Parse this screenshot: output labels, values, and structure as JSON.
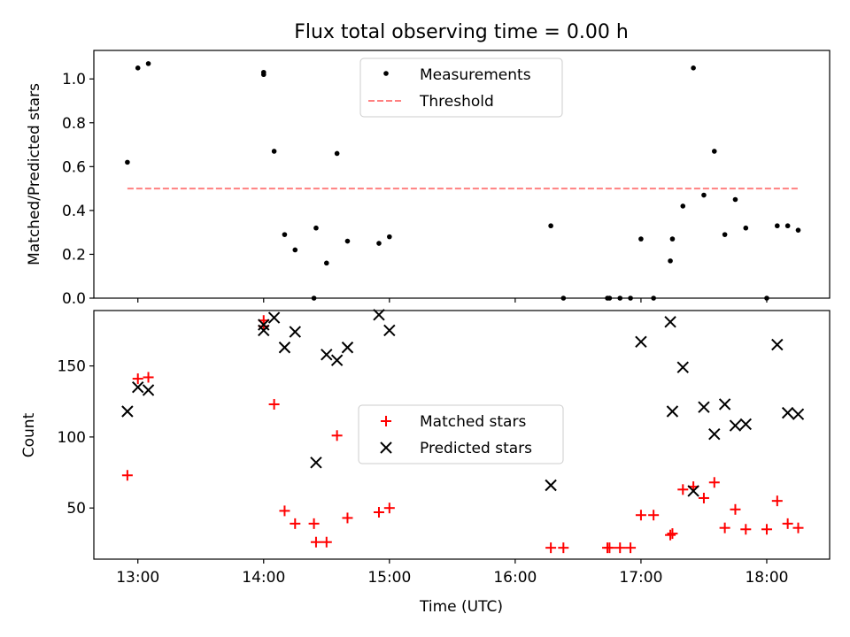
{
  "chart_data": [
    {
      "type": "scatter",
      "title": "Flux total observing time = 0.00 h",
      "ylabel": "Matched/Predicted stars",
      "xlabel": "",
      "ylim": [
        0,
        1.13
      ],
      "x_axis_hours": [
        12.65,
        18.5
      ],
      "yticks": [
        0.0,
        0.2,
        0.4,
        0.6,
        0.8,
        1.0
      ],
      "ytick_labels": [
        "0.0",
        "0.2",
        "0.4",
        "0.6",
        "0.8",
        "1.0"
      ],
      "xtick_hours": [
        13,
        14,
        15,
        16,
        17,
        18
      ],
      "grid": false,
      "legend": {
        "placement": "top-center",
        "entries": [
          {
            "label": "Measurements",
            "marker": "dot",
            "color": "#000000"
          },
          {
            "label": "Threshold",
            "marker": "dashed-line",
            "color": "#ff8080"
          }
        ]
      },
      "threshold": {
        "value": 0.5,
        "x_range": [
          "12:55",
          "18:15"
        ],
        "color": "#ff8080"
      },
      "series": [
        {
          "name": "Measurements",
          "color": "#000000",
          "points": [
            {
              "x": "12:55",
              "y": 0.62
            },
            {
              "x": "13:00",
              "y": 1.05
            },
            {
              "x": "13:05",
              "y": 1.07
            },
            {
              "x": "14:00",
              "y": 1.03
            },
            {
              "x": "14:00",
              "y": 1.02
            },
            {
              "x": "14:05",
              "y": 0.67
            },
            {
              "x": "14:10",
              "y": 0.29
            },
            {
              "x": "14:15",
              "y": 0.22
            },
            {
              "x": "14:24",
              "y": 0.0
            },
            {
              "x": "14:25",
              "y": 0.32
            },
            {
              "x": "14:30",
              "y": 0.16
            },
            {
              "x": "14:35",
              "y": 0.66
            },
            {
              "x": "14:40",
              "y": 0.26
            },
            {
              "x": "14:55",
              "y": 0.25
            },
            {
              "x": "15:00",
              "y": 0.28
            },
            {
              "x": "16:17",
              "y": 0.33
            },
            {
              "x": "16:23",
              "y": 0.0
            },
            {
              "x": "16:44",
              "y": 0.0
            },
            {
              "x": "16:45",
              "y": 0.0
            },
            {
              "x": "16:50",
              "y": 0.0
            },
            {
              "x": "16:55",
              "y": 0.0
            },
            {
              "x": "17:00",
              "y": 0.27
            },
            {
              "x": "17:06",
              "y": 0.0
            },
            {
              "x": "17:14",
              "y": 0.17
            },
            {
              "x": "17:15",
              "y": 0.27
            },
            {
              "x": "17:20",
              "y": 0.42
            },
            {
              "x": "17:25",
              "y": 1.05
            },
            {
              "x": "17:30",
              "y": 0.47
            },
            {
              "x": "17:35",
              "y": 0.67
            },
            {
              "x": "17:40",
              "y": 0.29
            },
            {
              "x": "17:45",
              "y": 0.45
            },
            {
              "x": "17:50",
              "y": 0.32
            },
            {
              "x": "18:00",
              "y": 0.0
            },
            {
              "x": "18:05",
              "y": 0.33
            },
            {
              "x": "18:10",
              "y": 0.33
            },
            {
              "x": "18:15",
              "y": 0.31
            }
          ]
        }
      ]
    },
    {
      "type": "scatter",
      "title": "",
      "ylabel": "Count",
      "xlabel": "Time (UTC)",
      "ylim": [
        14,
        189
      ],
      "x_axis_hours": [
        12.65,
        18.5
      ],
      "yticks": [
        50,
        100,
        150
      ],
      "ytick_labels": [
        "50",
        "100",
        "150"
      ],
      "xtick_hours": [
        13,
        14,
        15,
        16,
        17,
        18
      ],
      "xtick_labels": [
        "13:00",
        "14:00",
        "15:00",
        "16:00",
        "17:00",
        "18:00"
      ],
      "grid": false,
      "legend": {
        "placement": "center",
        "entries": [
          {
            "label": "Matched stars",
            "marker": "plus",
            "color": "#ff0000"
          },
          {
            "label": "Predicted stars",
            "marker": "x",
            "color": "#000000"
          }
        ]
      },
      "series": [
        {
          "name": "Matched stars",
          "marker": "plus",
          "color": "#ff0000",
          "points": [
            {
              "x": "12:55",
              "y": 73
            },
            {
              "x": "13:00",
              "y": 141
            },
            {
              "x": "13:05",
              "y": 142
            },
            {
              "x": "14:00",
              "y": 182
            },
            {
              "x": "14:00",
              "y": 178
            },
            {
              "x": "14:05",
              "y": 123
            },
            {
              "x": "14:10",
              "y": 48
            },
            {
              "x": "14:15",
              "y": 39
            },
            {
              "x": "14:24",
              "y": 39
            },
            {
              "x": "14:25",
              "y": 26
            },
            {
              "x": "14:30",
              "y": 26
            },
            {
              "x": "14:35",
              "y": 101
            },
            {
              "x": "14:40",
              "y": 43
            },
            {
              "x": "14:55",
              "y": 47
            },
            {
              "x": "15:00",
              "y": 50
            },
            {
              "x": "16:17",
              "y": 22
            },
            {
              "x": "16:23",
              "y": 22
            },
            {
              "x": "16:44",
              "y": 22
            },
            {
              "x": "16:45",
              "y": 22
            },
            {
              "x": "16:50",
              "y": 22
            },
            {
              "x": "16:55",
              "y": 22
            },
            {
              "x": "17:00",
              "y": 45
            },
            {
              "x": "17:06",
              "y": 45
            },
            {
              "x": "17:14",
              "y": 31
            },
            {
              "x": "17:15",
              "y": 32
            },
            {
              "x": "17:20",
              "y": 63
            },
            {
              "x": "17:25",
              "y": 65
            },
            {
              "x": "17:30",
              "y": 57
            },
            {
              "x": "17:35",
              "y": 68
            },
            {
              "x": "17:40",
              "y": 36
            },
            {
              "x": "17:45",
              "y": 49
            },
            {
              "x": "17:50",
              "y": 35
            },
            {
              "x": "18:00",
              "y": 35
            },
            {
              "x": "18:05",
              "y": 55
            },
            {
              "x": "18:10",
              "y": 39
            },
            {
              "x": "18:15",
              "y": 36
            }
          ]
        },
        {
          "name": "Predicted stars",
          "marker": "x",
          "color": "#000000",
          "points": [
            {
              "x": "12:55",
              "y": 118
            },
            {
              "x": "13:00",
              "y": 135
            },
            {
              "x": "13:05",
              "y": 133
            },
            {
              "x": "14:00",
              "y": 175
            },
            {
              "x": "14:00",
              "y": 179
            },
            {
              "x": "14:05",
              "y": 184
            },
            {
              "x": "14:10",
              "y": 163
            },
            {
              "x": "14:15",
              "y": 174
            },
            {
              "x": "14:25",
              "y": 82
            },
            {
              "x": "14:30",
              "y": 158
            },
            {
              "x": "14:35",
              "y": 154
            },
            {
              "x": "14:40",
              "y": 163
            },
            {
              "x": "14:55",
              "y": 186
            },
            {
              "x": "15:00",
              "y": 175
            },
            {
              "x": "16:17",
              "y": 66
            },
            {
              "x": "17:00",
              "y": 167
            },
            {
              "x": "17:14",
              "y": 181
            },
            {
              "x": "17:15",
              "y": 118
            },
            {
              "x": "17:20",
              "y": 149
            },
            {
              "x": "17:25",
              "y": 62
            },
            {
              "x": "17:30",
              "y": 121
            },
            {
              "x": "17:35",
              "y": 102
            },
            {
              "x": "17:40",
              "y": 123
            },
            {
              "x": "17:45",
              "y": 108
            },
            {
              "x": "17:50",
              "y": 109
            },
            {
              "x": "18:05",
              "y": 165
            },
            {
              "x": "18:10",
              "y": 117
            },
            {
              "x": "18:15",
              "y": 116
            }
          ]
        }
      ]
    }
  ]
}
